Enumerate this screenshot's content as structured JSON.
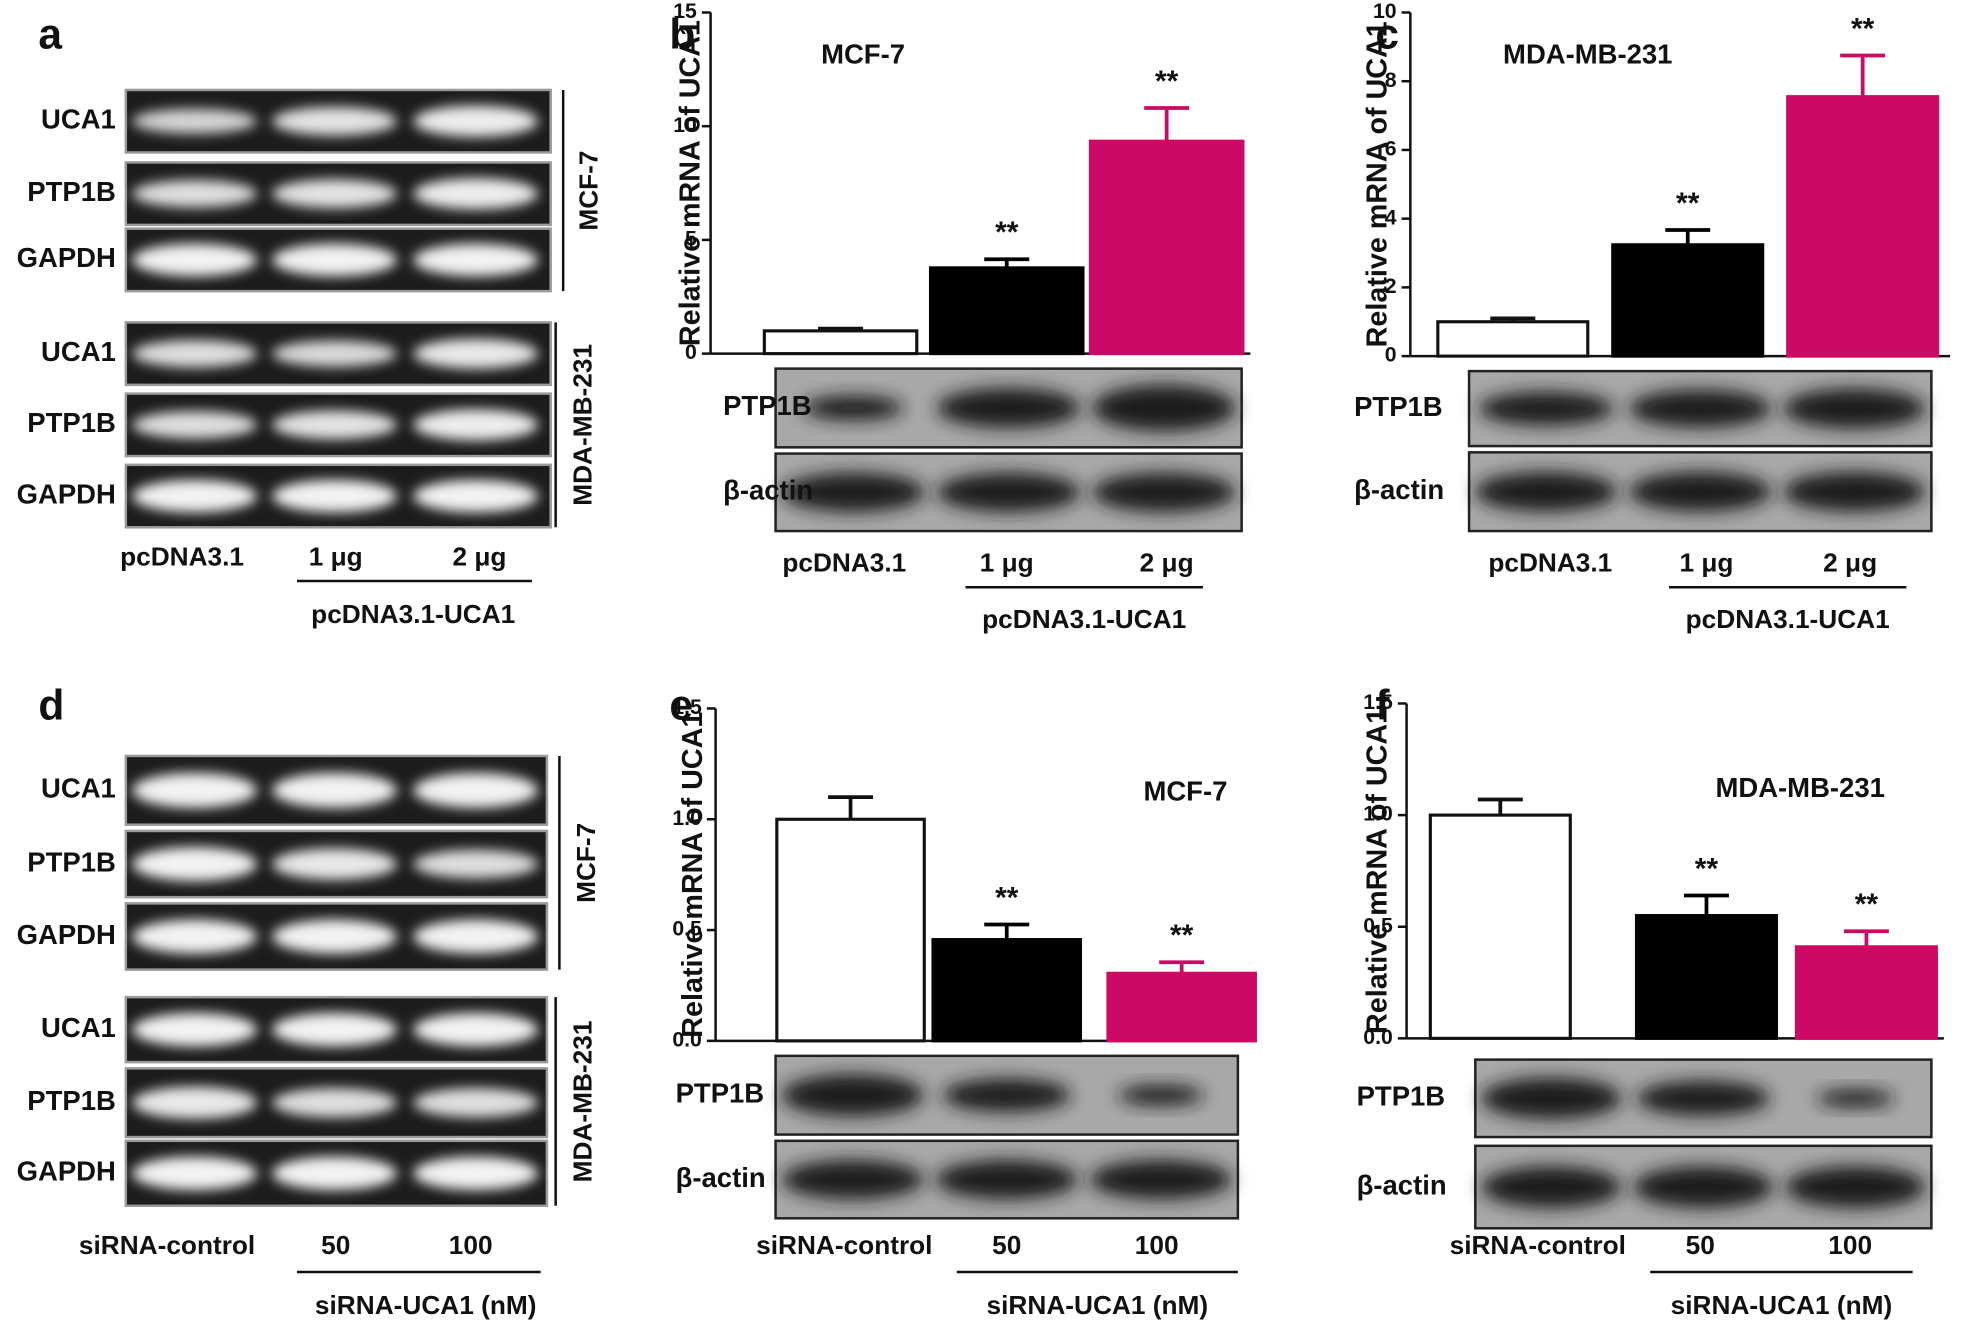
{
  "gels": [
    {
      "label": "a",
      "groups": [
        {
          "name": "MCF-7",
          "rows": [
            "UCA1",
            "PTP1B",
            "GAPDH"
          ]
        },
        {
          "name": "MDA-MB-231",
          "rows": [
            "UCA1",
            "PTP1B",
            "GAPDH"
          ]
        }
      ],
      "lanes": [
        "pcDNA3.1",
        "1 μg",
        "2 μg"
      ],
      "treatment": "pcDNA3.1-UCA1"
    },
    {
      "label": "d",
      "groups": [
        {
          "name": "MCF-7",
          "rows": [
            "UCA1",
            "PTP1B",
            "GAPDH"
          ]
        },
        {
          "name": "MDA-MB-231",
          "rows": [
            "UCA1",
            "PTP1B",
            "GAPDH"
          ]
        }
      ],
      "lanes": [
        "siRNA-control",
        "50",
        "100"
      ],
      "treatment": "siRNA-UCA1 (nM)"
    }
  ],
  "chart_data": [
    {
      "type": "bar",
      "panel": "b",
      "annotation": "MCF-7",
      "y_label": "Relative mRNA of UCA1",
      "categories": [
        "pcDNA3.1",
        "1 μg",
        "2 μg"
      ],
      "treatment": "pcDNA3.1-UCA1",
      "values": [
        1.0,
        3.77,
        9.34
      ],
      "errors": [
        0.1,
        0.38,
        1.46
      ],
      "colors": [
        "#ffffff",
        "#000000",
        "#cc0a66"
      ],
      "significance": [
        null,
        "**",
        "**"
      ],
      "ylim": [
        0,
        15
      ],
      "yticks": [
        0,
        5,
        10,
        15
      ],
      "blots": [
        "PTP1B",
        "β-actin"
      ]
    },
    {
      "type": "bar",
      "panel": "c",
      "annotation": "MDA-MB-231",
      "y_label": "Relative mRNA of UCA1",
      "categories": [
        "pcDNA3.1",
        "1 μg",
        "2 μg"
      ],
      "treatment": "pcDNA3.1-UCA1",
      "values": [
        1.0,
        3.24,
        7.55
      ],
      "errors": [
        0.1,
        0.43,
        1.2
      ],
      "colors": [
        "#ffffff",
        "#000000",
        "#cc0a66"
      ],
      "significance": [
        null,
        "**",
        "**"
      ],
      "ylim": [
        0,
        10
      ],
      "yticks": [
        0,
        2,
        4,
        6,
        8,
        10
      ],
      "blots": [
        "PTP1B",
        "β-actin"
      ]
    },
    {
      "type": "bar",
      "panel": "e",
      "annotation": "MCF-7",
      "y_label": "Relative mRNA of UCA1",
      "categories": [
        "siRNA-control",
        "50",
        "100"
      ],
      "treatment": "siRNA-UCA1 (nM)",
      "values": [
        1.0,
        0.457,
        0.305
      ],
      "errors": [
        0.1,
        0.068,
        0.05
      ],
      "colors": [
        "#ffffff",
        "#000000",
        "#cc0a66"
      ],
      "significance": [
        null,
        "**",
        "**"
      ],
      "ylim": [
        0,
        1.5
      ],
      "yticks": [
        {
          "value": 0,
          "label": "0.0"
        },
        0.5,
        {
          "value": 1,
          "label": "1.0"
        },
        1.5
      ],
      "blots": [
        "PTP1B",
        "β-actin"
      ]
    },
    {
      "type": "bar",
      "panel": "f",
      "annotation": "MDA-MB-231",
      "y_label": "Relative mRNA of UCA1",
      "categories": [
        "siRNA-control",
        "50",
        "100"
      ],
      "treatment": "siRNA-UCA1 (nM)",
      "values": [
        1.0,
        0.55,
        0.41
      ],
      "errors": [
        0.07,
        0.09,
        0.07
      ],
      "colors": [
        "#ffffff",
        "#000000",
        "#cc0a66"
      ],
      "significance": [
        null,
        "**",
        "**"
      ],
      "ylim": [
        0,
        1.5
      ],
      "yticks": [
        {
          "value": 0,
          "label": "0.0"
        },
        0.5,
        {
          "value": 1,
          "label": "1.0"
        },
        1.5
      ],
      "blots": [
        "PTP1B",
        "β-actin"
      ]
    }
  ]
}
